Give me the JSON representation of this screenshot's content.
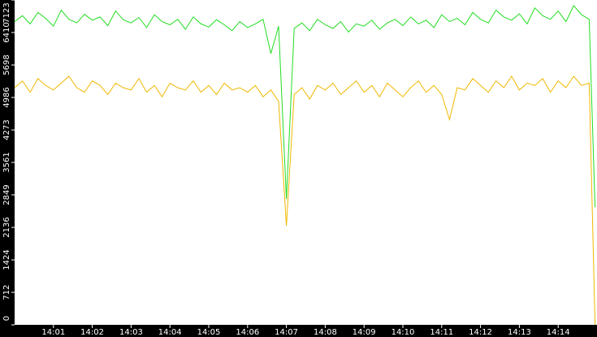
{
  "chart_data": {
    "type": "line",
    "x": [
      0,
      0.2,
      0.4,
      0.6,
      0.8,
      1,
      1.2,
      1.4,
      1.6,
      1.8,
      2,
      2.2,
      2.4,
      2.6,
      2.8,
      3,
      3.2,
      3.4,
      3.6,
      3.8,
      4,
      4.2,
      4.4,
      4.6,
      4.8,
      5,
      5.2,
      5.4,
      5.6,
      5.8,
      6,
      6.2,
      6.4,
      6.6,
      6.8,
      7,
      7.2,
      7.4,
      7.6,
      7.8,
      8,
      8.2,
      8.4,
      8.6,
      8.8,
      9,
      9.2,
      9.4,
      9.6,
      9.8,
      10,
      10.2,
      10.4,
      10.6,
      10.8,
      11,
      11.2,
      11.4,
      11.6,
      11.8,
      12,
      12.2,
      12.4,
      12.6,
      12.8,
      13,
      13.2,
      13.4,
      13.6,
      13.8,
      14,
      14.2,
      14.4,
      14.6,
      14.8,
      14.95
    ],
    "series": [
      {
        "color": "#22dd22",
        "values": [
          6650,
          6780,
          6600,
          6850,
          6720,
          6550,
          6900,
          6700,
          6620,
          6810,
          6680,
          6750,
          6560,
          6880,
          6690,
          6620,
          6740,
          6520,
          6800,
          6650,
          6580,
          6700,
          6480,
          6750,
          6600,
          6530,
          6690,
          6580,
          6450,
          6650,
          6520,
          6600,
          6700,
          5950,
          6550,
          2760,
          6500,
          6620,
          6450,
          6700,
          6580,
          6500,
          6650,
          6420,
          6600,
          6550,
          6680,
          6480,
          6620,
          6700,
          6560,
          6750,
          6600,
          6680,
          6520,
          6800,
          6650,
          6720,
          6580,
          6850,
          6700,
          6620,
          6900,
          6750,
          6680,
          6820,
          6600,
          6950,
          6780,
          6700,
          6880,
          6650,
          7000,
          6800,
          6700,
          2580
        ]
      },
      {
        "color": "#f0b800",
        "values": [
          5200,
          5350,
          5100,
          5400,
          5250,
          5150,
          5300,
          5450,
          5200,
          5100,
          5350,
          5250,
          5050,
          5300,
          5200,
          5150,
          5400,
          5100,
          5250,
          5000,
          5300,
          5200,
          5150,
          5350,
          5100,
          5250,
          5050,
          5300,
          5150,
          5200,
          5100,
          5250,
          5000,
          5150,
          4900,
          2170,
          5050,
          5200,
          4950,
          5250,
          5150,
          5300,
          5050,
          5200,
          5350,
          5100,
          5250,
          5000,
          5300,
          5150,
          5000,
          5200,
          5350,
          5100,
          5250,
          5050,
          4500,
          5200,
          5150,
          5400,
          5250,
          5100,
          5350,
          5200,
          5450,
          5150,
          5300,
          5250,
          5400,
          5100,
          5350,
          5200,
          5450,
          5250,
          5300,
          0
        ]
      }
    ],
    "xlim": [
      0,
      15
    ],
    "xticks": [
      {
        "value": 1,
        "label": "14:01"
      },
      {
        "value": 2,
        "label": "14:02"
      },
      {
        "value": 3,
        "label": "14:03"
      },
      {
        "value": 4,
        "label": "14:04"
      },
      {
        "value": 5,
        "label": "14:05"
      },
      {
        "value": 6,
        "label": "14:06"
      },
      {
        "value": 7,
        "label": "14:07"
      },
      {
        "value": 8,
        "label": "14:08"
      },
      {
        "value": 9,
        "label": "14:09"
      },
      {
        "value": 10,
        "label": "14:10"
      },
      {
        "value": 11,
        "label": "14:11"
      },
      {
        "value": 12,
        "label": "14:12"
      },
      {
        "value": 13,
        "label": "14:13"
      },
      {
        "value": 14,
        "label": "14:14"
      }
    ],
    "ylim": [
      0,
      7123
    ],
    "yticks": [
      0,
      712,
      1424,
      2136,
      2849,
      3561,
      4273,
      4986,
      5698,
      6410,
      7123
    ]
  }
}
